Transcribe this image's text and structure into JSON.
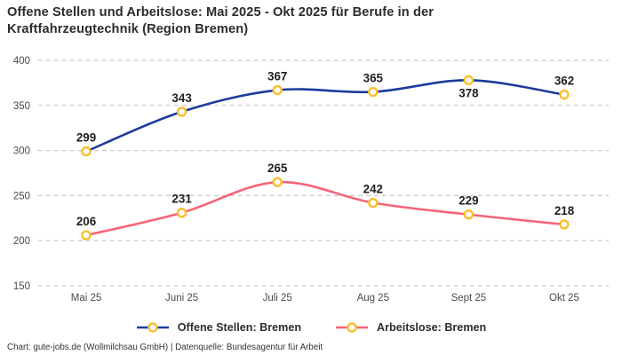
{
  "title": "Offene Stellen und Arbeitslose: Mai 2025 - Okt 2025 für Berufe in der Kraftfahrzeugtechnik (Region Bremen)",
  "footer": "Chart: gute-jobs.de (Wollmilchsau GmbH) | Datenquelle: Bundesagentur für Arbeit",
  "colors": {
    "open_positions": "#1c3b9b",
    "unemployed": "#f56478",
    "marker_ring": "#fbbd2c",
    "marker_fill": "#ffffff",
    "gridline": "#c9c9c9",
    "axis_text": "#4a4a4a",
    "label_text": "#1f1f1f",
    "title_text": "#2d2d2d"
  },
  "chart_data": {
    "type": "line",
    "title": "Offene Stellen und Arbeitslose: Mai 2025 - Okt 2025 für Berufe in der Kraftfahrzeugtechnik (Region Bremen)",
    "x": [
      "Mai 25",
      "Juni 25",
      "Juli 25",
      "Aug 25",
      "Sept 25",
      "Okt 25"
    ],
    "series": [
      {
        "name": "Offene Stellen: Bremen",
        "values": [
          299,
          343,
          367,
          365,
          378,
          362
        ],
        "color_key": "open_positions",
        "label_below_indices": [
          4
        ]
      },
      {
        "name": "Arbeitslose: Bremen",
        "values": [
          206,
          231,
          265,
          242,
          229,
          218
        ],
        "color_key": "unemployed",
        "label_below_indices": []
      }
    ],
    "yticks": [
      150,
      200,
      250,
      300,
      350,
      400
    ],
    "ylim": [
      150,
      400
    ],
    "grid": "horizontal-dashed",
    "legend_position": "bottom",
    "marker": "circle-ring-gold",
    "xlabel": "",
    "ylabel": ""
  }
}
